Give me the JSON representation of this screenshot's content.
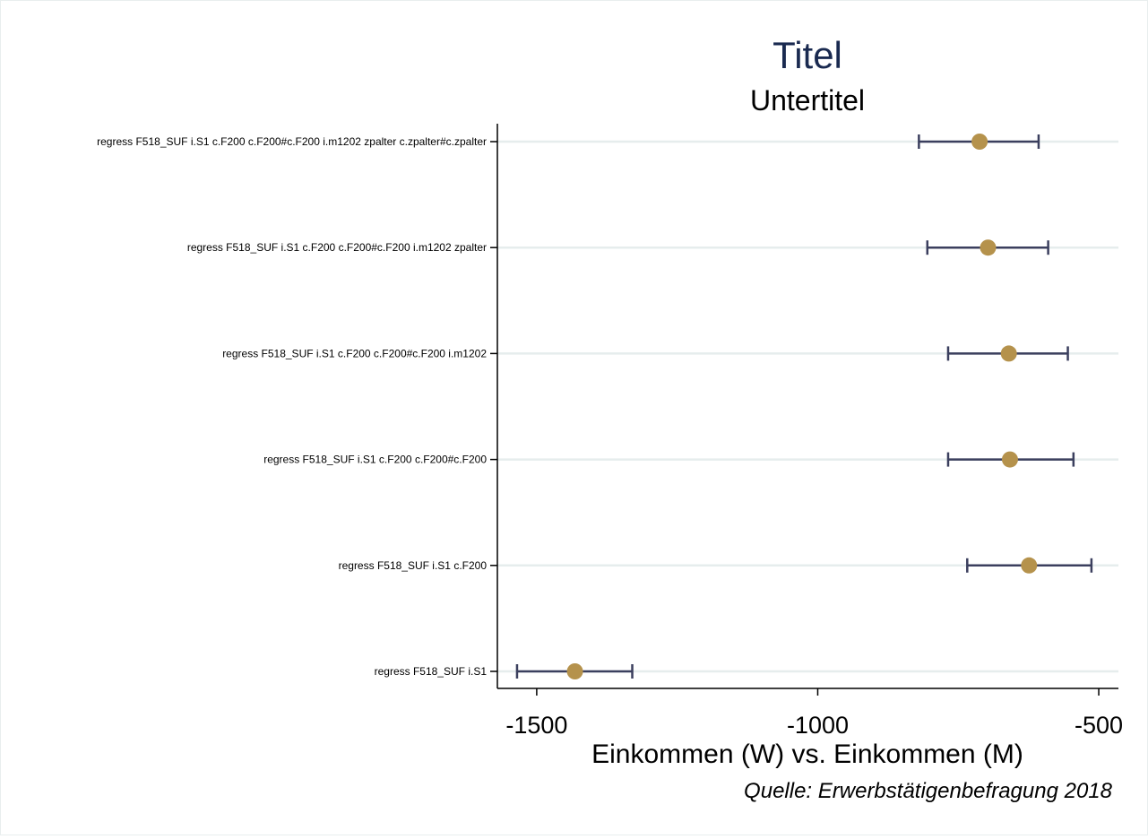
{
  "chart_data": {
    "type": "coefplot",
    "title": "Titel",
    "subtitle": "Untertitel",
    "xlabel": "Einkommen (W) vs. Einkommen (M)",
    "note": "Quelle: Erwerbstätigenbefragung 2018",
    "xlim": [
      -1570,
      -465
    ],
    "xticks": [
      -1500,
      -1000,
      -500
    ],
    "xtick_labels": [
      "-1500",
      "-1000",
      "-500"
    ],
    "grid": true,
    "colors": {
      "point": "#b5924c",
      "ci": "#3b3f5e",
      "grid": "#e6eded",
      "title": "#1a2a50"
    },
    "series": [
      {
        "label": "regress F518_SUF i.S1 c.F200 c.F200#c.F200 i.m1202 zpalter c.zpalter#c.zpalter",
        "estimate": -712,
        "ci_low": -820,
        "ci_high": -607
      },
      {
        "label": "regress F518_SUF i.S1 c.F200 c.F200#c.F200 i.m1202 zpalter",
        "estimate": -697,
        "ci_low": -805,
        "ci_high": -590
      },
      {
        "label": "regress F518_SUF i.S1 c.F200 c.F200#c.F200 i.m1202",
        "estimate": -660,
        "ci_low": -768,
        "ci_high": -555
      },
      {
        "label": "regress F518_SUF i.S1 c.F200 c.F200#c.F200",
        "estimate": -658,
        "ci_low": -768,
        "ci_high": -545
      },
      {
        "label": "regress F518_SUF i.S1 c.F200",
        "estimate": -624,
        "ci_low": -734,
        "ci_high": -513
      },
      {
        "label": "regress F518_SUF i.S1",
        "estimate": -1432,
        "ci_low": -1535,
        "ci_high": -1330
      }
    ]
  }
}
